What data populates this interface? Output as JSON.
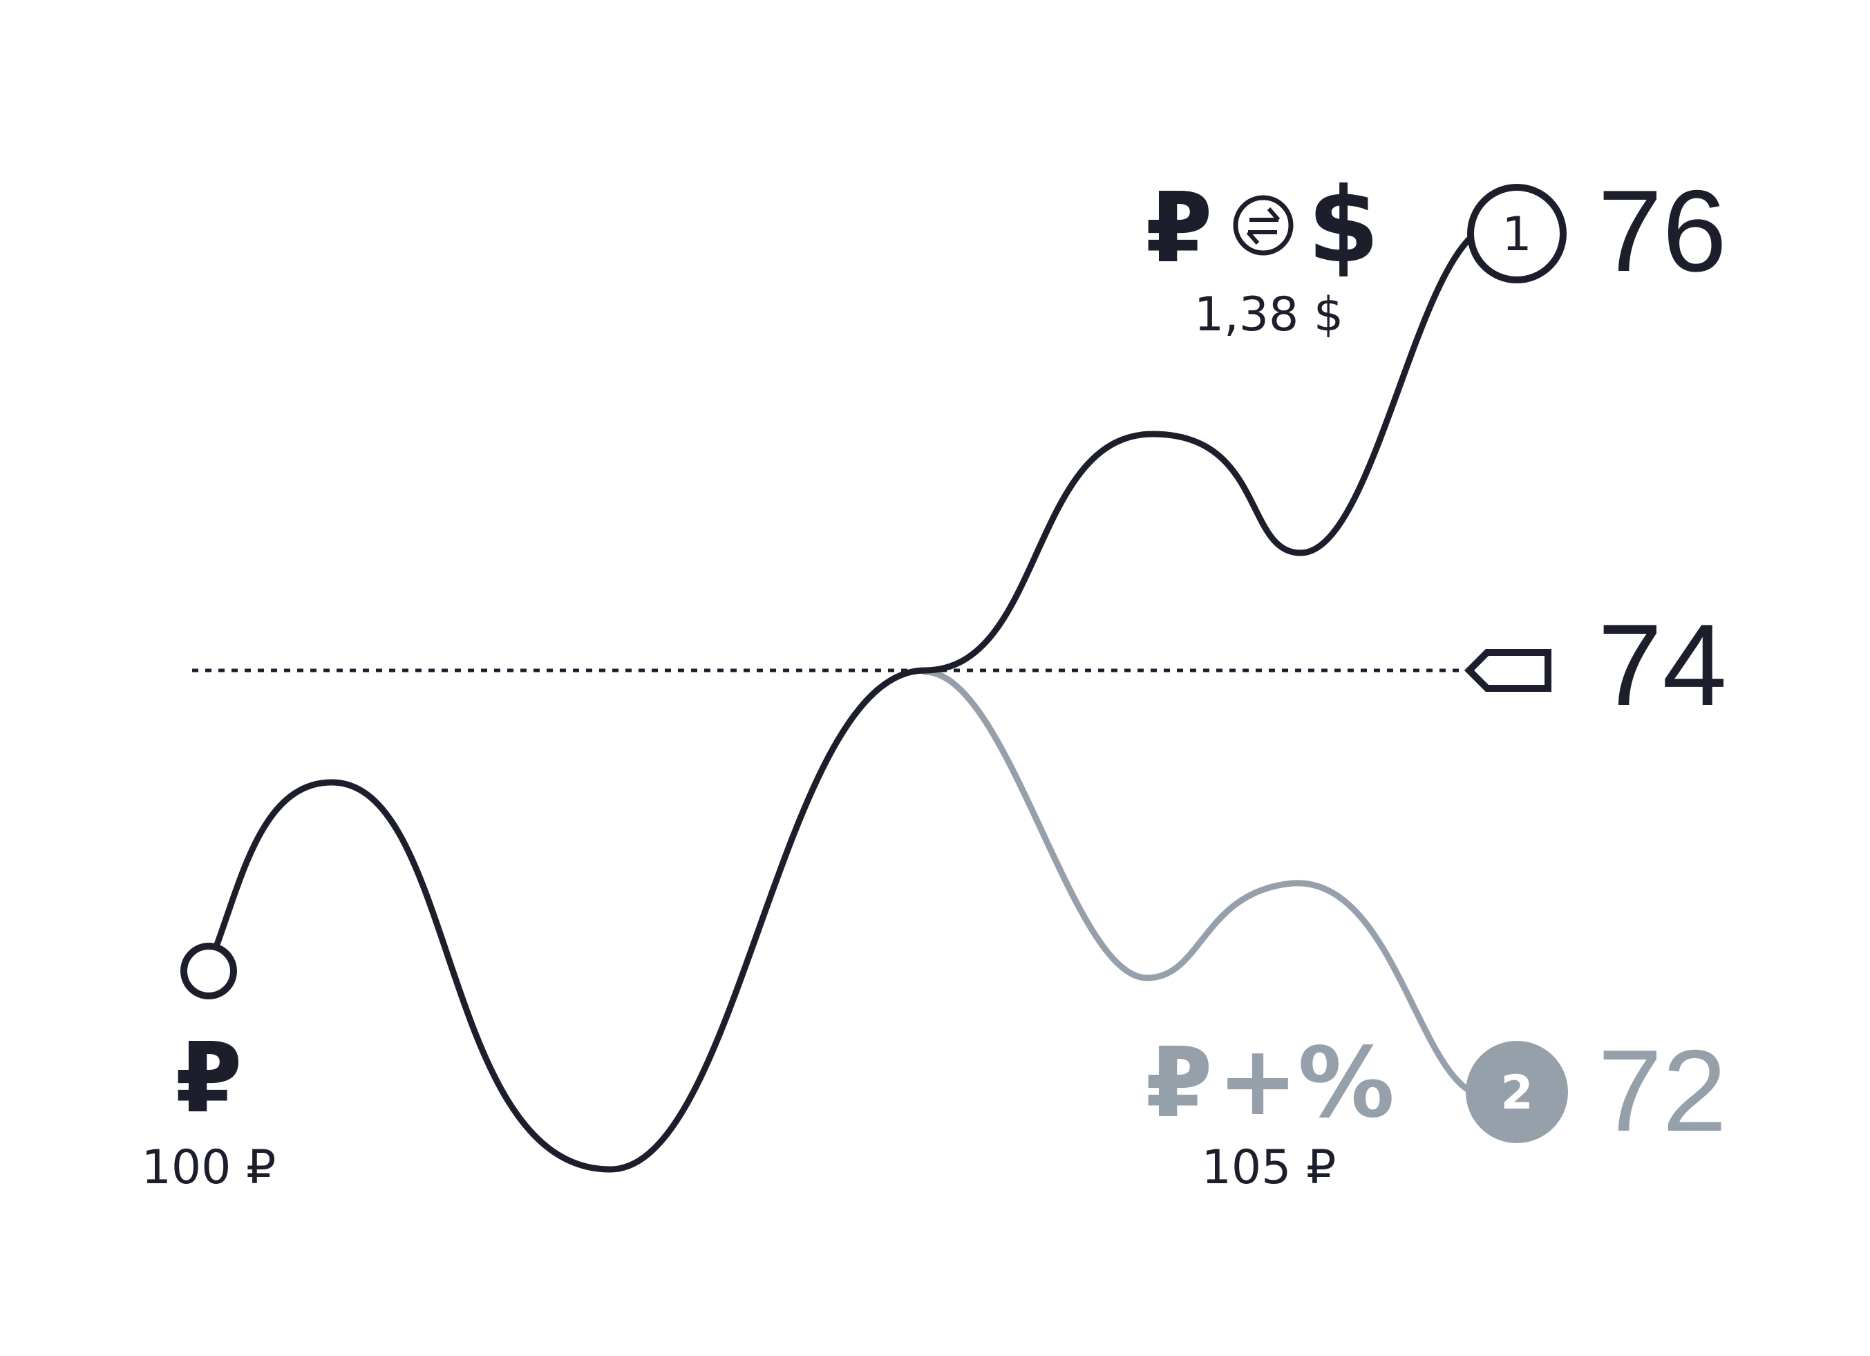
{
  "colors": {
    "dark": "#1c1f2b",
    "gray": "#95a0aa",
    "background": "#ffffff"
  },
  "start": {
    "symbol": "₽",
    "amount_label": "100 ₽"
  },
  "exchange_option": {
    "symbol_from": "₽",
    "exchange_icon": "currency-exchange-icon",
    "symbol_to": "$",
    "amount_label": "1,38 $",
    "marker_number": "1",
    "rate_label": "76"
  },
  "current_rate": {
    "marker_icon": "tag-icon",
    "rate_label": "74"
  },
  "deposit_option": {
    "symbol": "₽",
    "plus": "+",
    "percent": "%",
    "amount_label": "105 ₽",
    "marker_number": "2",
    "rate_label": "72"
  }
}
